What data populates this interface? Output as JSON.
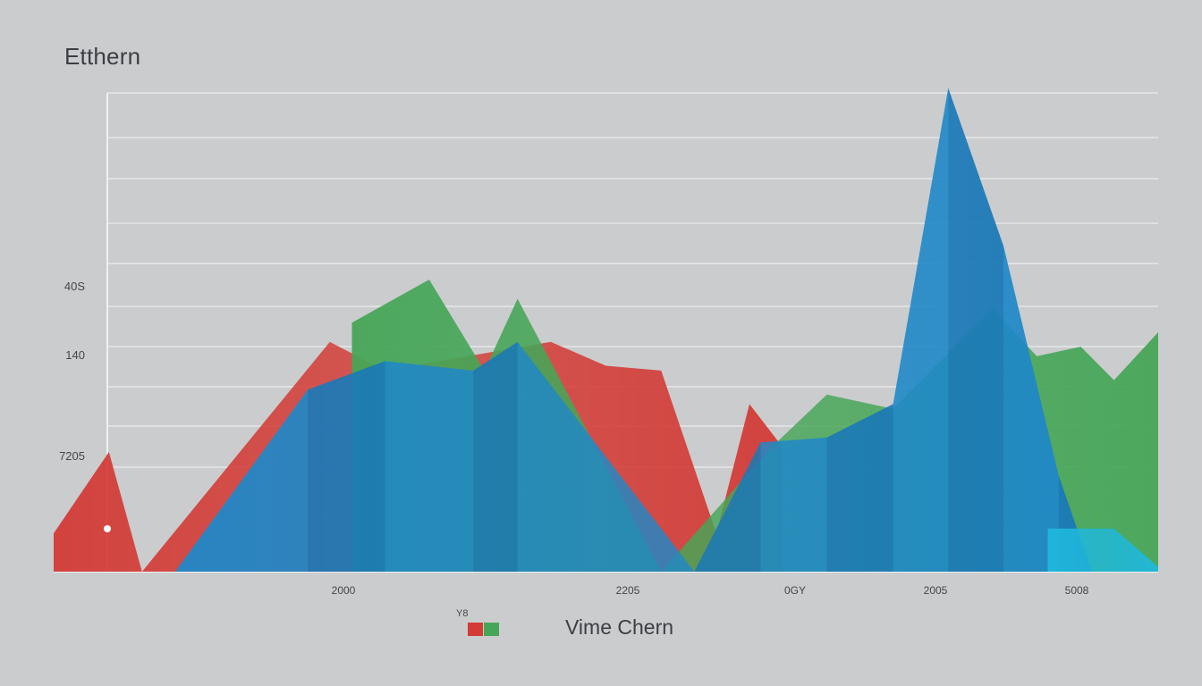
{
  "chart": {
    "title": "Etthern",
    "legend_mark": "Y8",
    "legend_title": "Vime Chern"
  },
  "colors": {
    "background": "#cbcccd",
    "red": "#d33b36",
    "green": "#46a657",
    "blue": "#1f88c8",
    "cyan": "#1fb8dc",
    "gridline": "#e6e7e8"
  },
  "chart_data": {
    "type": "area",
    "title": "Etthern",
    "xlabel": "",
    "ylabel": "",
    "grid": true,
    "legend": "bottom-center",
    "x_tick_labels": [
      "2000",
      "2205",
      "0GY",
      "2005",
      "5008"
    ],
    "y_tick_labels": [
      "40S",
      "140",
      "7205"
    ],
    "ylim": [
      0,
      100
    ],
    "series": [
      {
        "color": "#d33b36",
        "points": [
          [
            0,
            8
          ],
          [
            5,
            25
          ],
          [
            8,
            0
          ],
          [
            25,
            48
          ],
          [
            30,
            42
          ],
          [
            45,
            48
          ],
          [
            50,
            43
          ],
          [
            55,
            42
          ],
          [
            60,
            8
          ],
          [
            63,
            35
          ],
          [
            66,
            26
          ]
        ]
      },
      {
        "color": "#46a657",
        "points": [
          [
            27,
            52
          ],
          [
            34,
            61
          ],
          [
            39,
            42
          ],
          [
            42,
            57
          ],
          [
            50,
            22
          ],
          [
            55,
            0
          ],
          [
            65,
            26
          ],
          [
            70,
            37
          ],
          [
            76,
            34
          ],
          [
            85,
            55
          ],
          [
            89,
            45
          ],
          [
            93,
            47
          ],
          [
            96,
            40
          ],
          [
            100,
            50
          ]
        ]
      },
      {
        "color": "#1f88c8",
        "points": [
          [
            11,
            0
          ],
          [
            23,
            38
          ],
          [
            30,
            44
          ],
          [
            38,
            42
          ],
          [
            42,
            48
          ],
          [
            58,
            0
          ],
          [
            64,
            27
          ],
          [
            70,
            28
          ],
          [
            76,
            35
          ],
          [
            81,
            101
          ],
          [
            86,
            68
          ],
          [
            91,
            20
          ],
          [
            94,
            0
          ]
        ]
      },
      {
        "color": "#1fb8dc",
        "points": [
          [
            90,
            9
          ],
          [
            96,
            9
          ],
          [
            100,
            1
          ]
        ]
      }
    ]
  }
}
